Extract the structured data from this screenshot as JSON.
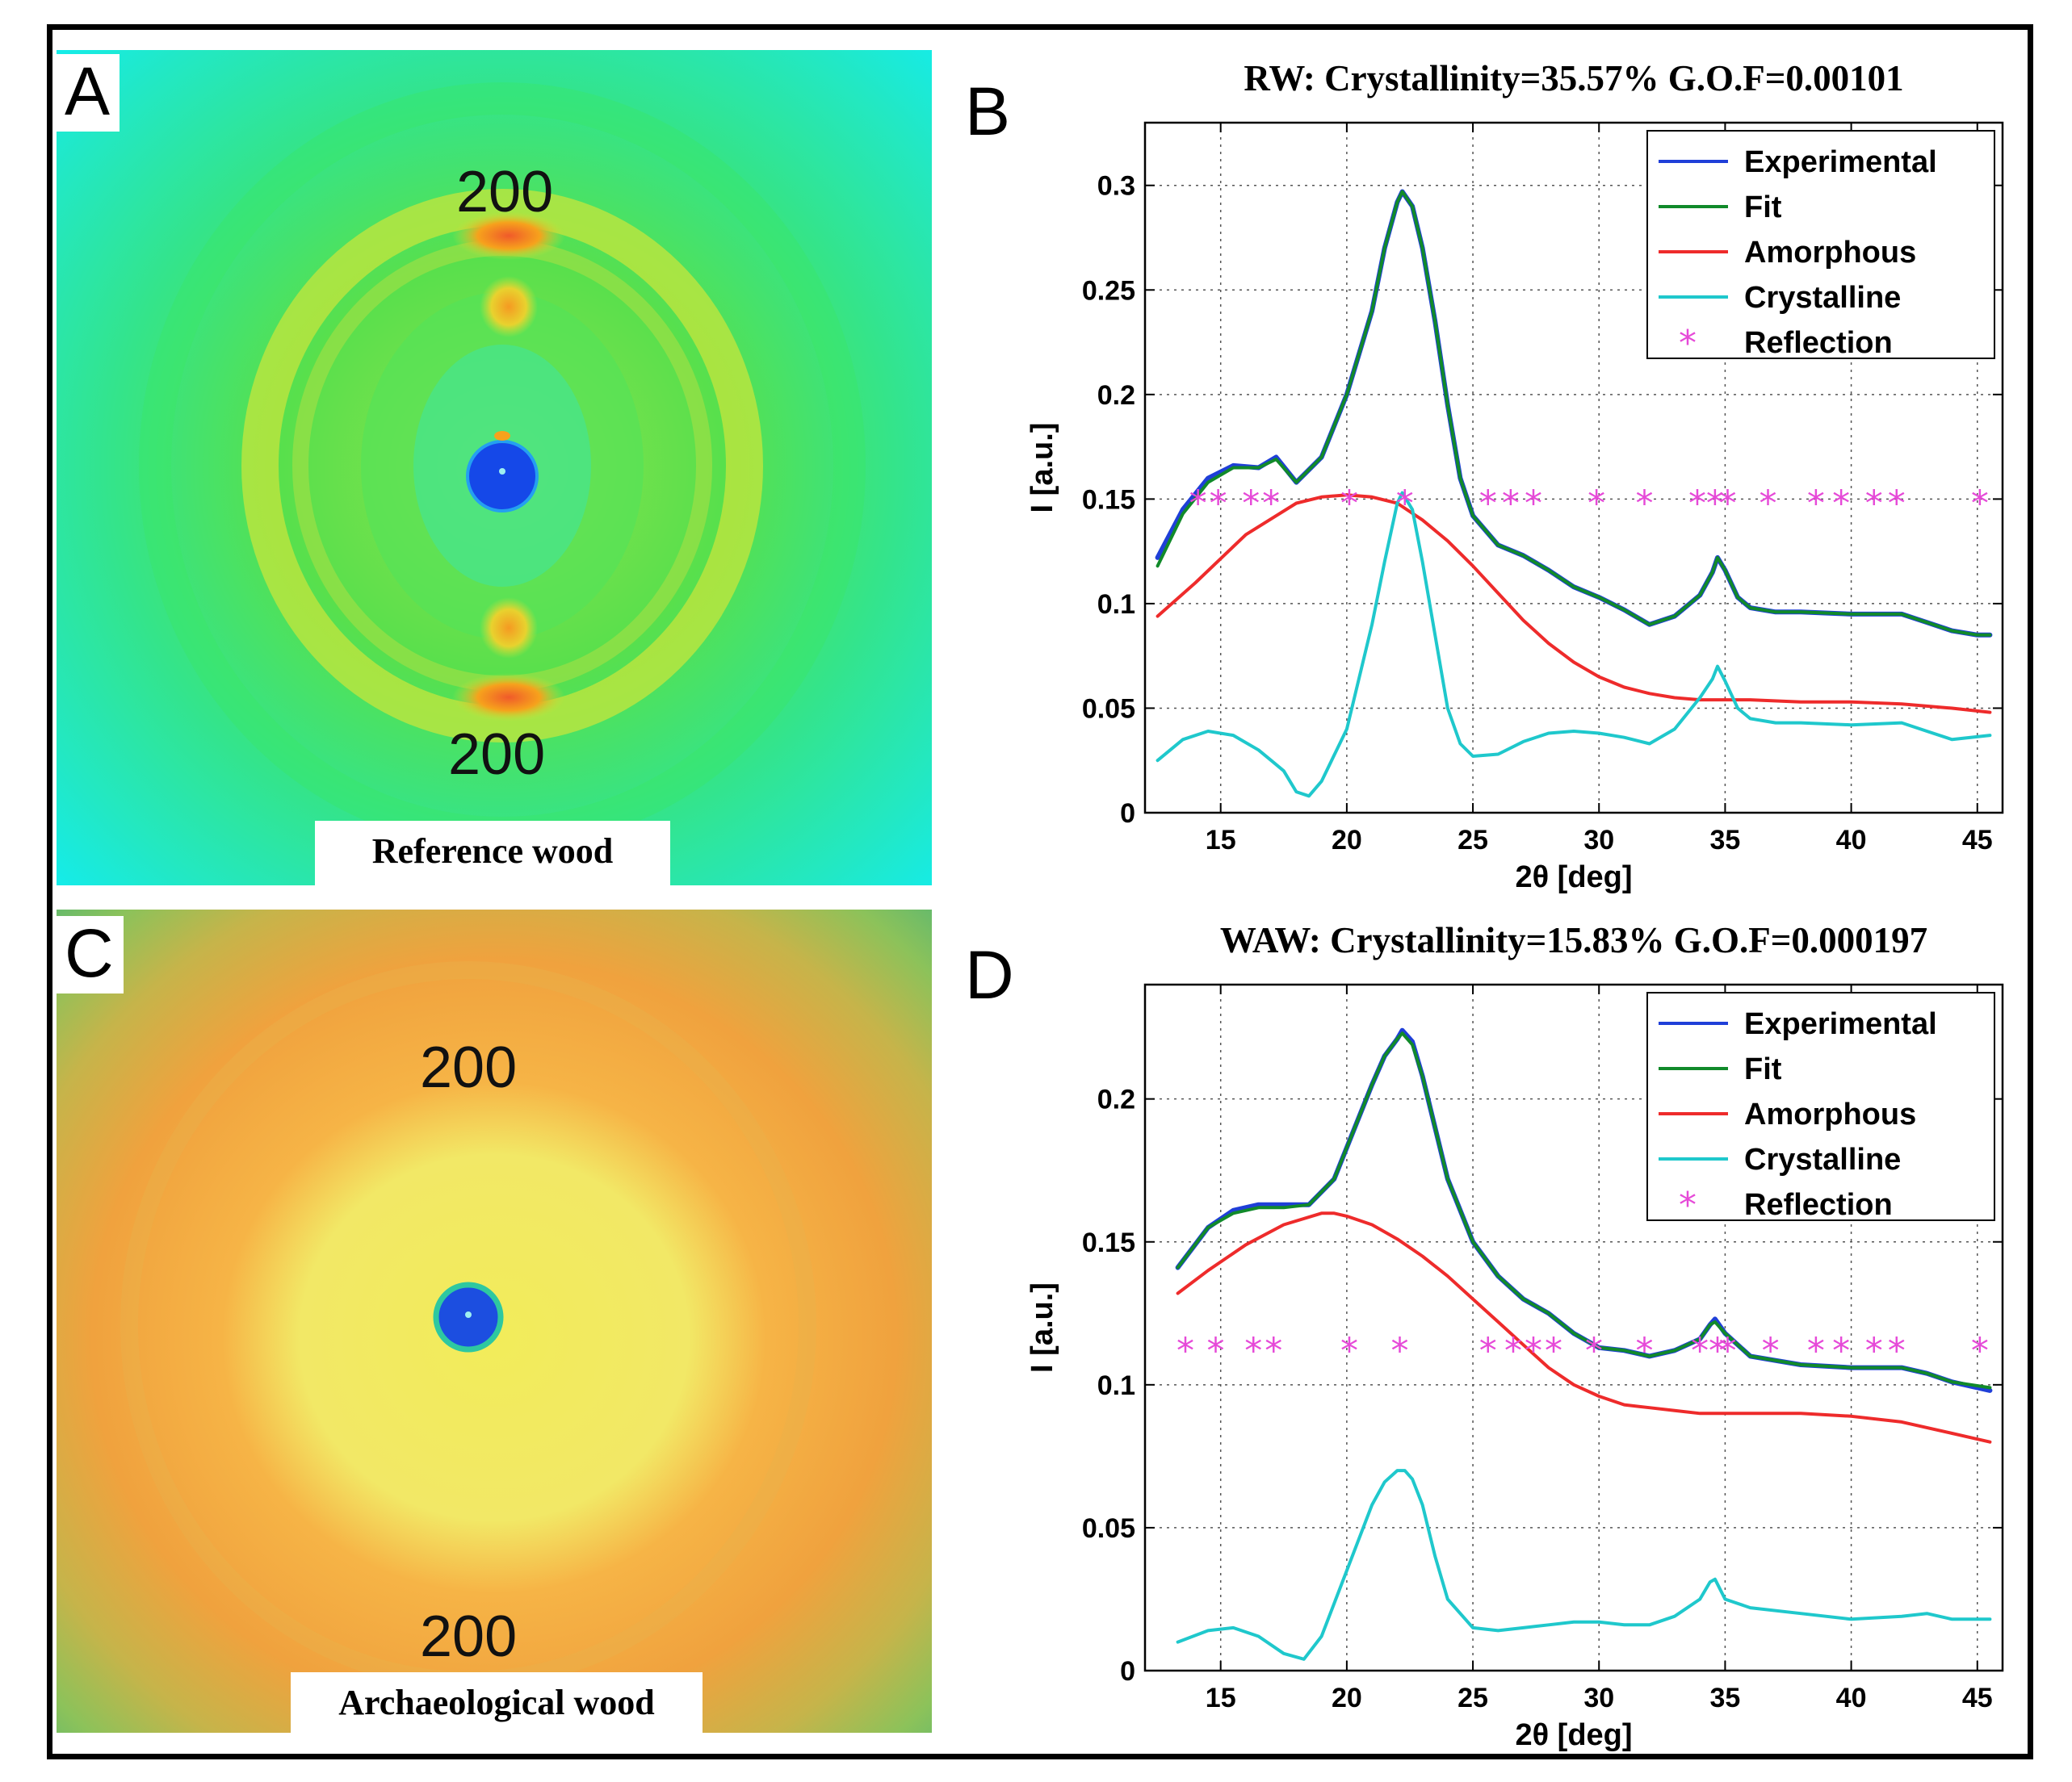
{
  "panels": {
    "A": {
      "letter": "A",
      "top_reflection": "200",
      "bottom_reflection": "200",
      "caption": "Reference wood"
    },
    "C": {
      "letter": "C",
      "top_reflection": "200",
      "bottom_reflection": "200",
      "caption": "Archaeological wood"
    }
  },
  "colors": {
    "experimental": "#1f3fd8",
    "fit": "#118a2a",
    "amorphous": "#ee2b2b",
    "crystalline": "#1fc8cc",
    "reflection": "#e64ad8",
    "frame": "#000000"
  },
  "chart_data": [
    {
      "panel_letter": "B",
      "type": "line",
      "title": "RW: Crystallinity=35.57% G.O.F=0.00101",
      "xlabel": "2θ [deg]",
      "ylabel": "I [a.u.]",
      "xlim": [
        12,
        46
      ],
      "ylim": [
        0,
        0.33
      ],
      "xticks": [
        15,
        20,
        25,
        30,
        35,
        40,
        45
      ],
      "yticks": [
        0,
        0.05,
        0.1,
        0.15,
        0.2,
        0.25,
        0.3
      ],
      "ytick_labels": [
        "0",
        "0.05",
        "0.1",
        "0.15",
        "0.2",
        "0.25",
        "0.3"
      ],
      "grid": true,
      "legend_position": "top-right",
      "legend": [
        "Experimental",
        "Fit",
        "Amorphous",
        "Crystalline",
        "Reflection"
      ],
      "series": [
        {
          "name": "Experimental",
          "color": "#1f3fd8",
          "x": [
            12.5,
            13.5,
            14.5,
            15.5,
            16.5,
            17.2,
            18,
            19,
            20,
            21,
            21.5,
            22,
            22.2,
            22.6,
            23,
            23.5,
            24,
            24.5,
            25,
            26,
            27,
            28,
            29,
            30,
            31,
            32,
            33,
            34,
            34.5,
            34.7,
            35,
            35.5,
            36,
            37,
            38,
            40,
            42,
            43,
            44,
            45,
            45.5
          ],
          "y": [
            0.122,
            0.145,
            0.16,
            0.166,
            0.165,
            0.17,
            0.158,
            0.17,
            0.2,
            0.24,
            0.27,
            0.292,
            0.297,
            0.29,
            0.27,
            0.235,
            0.195,
            0.16,
            0.142,
            0.128,
            0.123,
            0.116,
            0.108,
            0.103,
            0.097,
            0.09,
            0.094,
            0.104,
            0.115,
            0.122,
            0.116,
            0.103,
            0.098,
            0.096,
            0.096,
            0.095,
            0.095,
            0.091,
            0.087,
            0.085,
            0.085
          ]
        },
        {
          "name": "Fit",
          "color": "#118a2a",
          "x": [
            12.5,
            13.5,
            14.5,
            15.5,
            16.5,
            17.2,
            18,
            19,
            20,
            21,
            21.5,
            22,
            22.2,
            22.6,
            23,
            23.5,
            24,
            24.5,
            25,
            26,
            27,
            28,
            29,
            30,
            31,
            32,
            33,
            34,
            34.5,
            34.7,
            35,
            35.5,
            36,
            37,
            38,
            40,
            42,
            43,
            44,
            45,
            45.5
          ],
          "y": [
            0.118,
            0.143,
            0.158,
            0.165,
            0.165,
            0.169,
            0.158,
            0.17,
            0.2,
            0.24,
            0.27,
            0.292,
            0.297,
            0.29,
            0.27,
            0.235,
            0.195,
            0.16,
            0.142,
            0.128,
            0.123,
            0.116,
            0.108,
            0.103,
            0.097,
            0.09,
            0.094,
            0.104,
            0.115,
            0.122,
            0.116,
            0.103,
            0.098,
            0.096,
            0.096,
            0.095,
            0.095,
            0.091,
            0.087,
            0.085,
            0.085
          ]
        },
        {
          "name": "Amorphous",
          "color": "#ee2b2b",
          "x": [
            12.5,
            14,
            16,
            18,
            19,
            20,
            21,
            22,
            23,
            24,
            25,
            26,
            27,
            28,
            29,
            30,
            31,
            32,
            33,
            34,
            35,
            36,
            38,
            40,
            42,
            44,
            45.5
          ],
          "y": [
            0.094,
            0.11,
            0.133,
            0.148,
            0.151,
            0.152,
            0.151,
            0.148,
            0.14,
            0.13,
            0.118,
            0.105,
            0.092,
            0.081,
            0.072,
            0.065,
            0.06,
            0.057,
            0.055,
            0.054,
            0.054,
            0.054,
            0.053,
            0.053,
            0.052,
            0.05,
            0.048
          ]
        },
        {
          "name": "Crystalline",
          "color": "#1fc8cc",
          "x": [
            12.5,
            13.5,
            14.5,
            15.5,
            16.5,
            17,
            17.5,
            18,
            18.5,
            19,
            20,
            21,
            21.5,
            22,
            22.2,
            22.6,
            23,
            23.5,
            24,
            24.5,
            25,
            26,
            27,
            28,
            29,
            30,
            31,
            32,
            33,
            34,
            34.5,
            34.7,
            35,
            35.5,
            36,
            37,
            38,
            40,
            42,
            43,
            44,
            45.5
          ],
          "y": [
            0.025,
            0.035,
            0.039,
            0.037,
            0.03,
            0.025,
            0.02,
            0.01,
            0.008,
            0.015,
            0.04,
            0.09,
            0.12,
            0.148,
            0.153,
            0.145,
            0.12,
            0.085,
            0.05,
            0.033,
            0.027,
            0.028,
            0.034,
            0.038,
            0.039,
            0.038,
            0.036,
            0.033,
            0.04,
            0.055,
            0.064,
            0.07,
            0.063,
            0.05,
            0.045,
            0.043,
            0.043,
            0.042,
            0.043,
            0.039,
            0.035,
            0.037
          ]
        },
        {
          "name": "Reflection",
          "color": "#e64ad8",
          "marker": "*",
          "x": [
            14.1,
            14.9,
            16.2,
            17.0,
            20.1,
            22.3,
            25.6,
            26.5,
            27.4,
            29.9,
            31.8,
            33.9,
            34.6,
            35.1,
            36.7,
            38.6,
            39.6,
            40.9,
            41.8,
            45.1
          ],
          "y": [
            0.148,
            0.148,
            0.148,
            0.148,
            0.148,
            0.148,
            0.148,
            0.148,
            0.148,
            0.148,
            0.148,
            0.148,
            0.148,
            0.148,
            0.148,
            0.148,
            0.148,
            0.148,
            0.148,
            0.148
          ]
        }
      ]
    },
    {
      "panel_letter": "D",
      "type": "line",
      "title": "WAW: Crystallinity=15.83% G.O.F=0.000197",
      "xlabel": "2θ [deg]",
      "ylabel": "I [a.u.]",
      "xlim": [
        12,
        46
      ],
      "ylim": [
        0,
        0.24
      ],
      "xticks": [
        15,
        20,
        25,
        30,
        35,
        40,
        45
      ],
      "yticks": [
        0,
        0.05,
        0.1,
        0.15,
        0.2
      ],
      "ytick_labels": [
        "0",
        "0.05",
        "0.1",
        "0.15",
        "0.2"
      ],
      "grid": true,
      "legend_position": "top-right",
      "legend": [
        "Experimental",
        "Fit",
        "Amorphous",
        "Crystalline",
        "Reflection"
      ],
      "series": [
        {
          "name": "Experimental",
          "color": "#1f3fd8",
          "x": [
            13.3,
            14.5,
            15.5,
            16.5,
            17.5,
            18.5,
            19.5,
            20.5,
            21,
            21.5,
            22,
            22.2,
            22.6,
            23,
            23.5,
            24,
            25,
            26,
            27,
            28,
            29,
            30,
            31,
            32,
            33,
            34,
            34.4,
            34.6,
            35,
            36,
            38,
            40,
            42,
            43,
            44,
            45.5
          ],
          "y": [
            0.141,
            0.155,
            0.161,
            0.163,
            0.163,
            0.163,
            0.172,
            0.194,
            0.205,
            0.215,
            0.221,
            0.224,
            0.22,
            0.208,
            0.19,
            0.172,
            0.15,
            0.138,
            0.13,
            0.125,
            0.118,
            0.113,
            0.112,
            0.11,
            0.112,
            0.116,
            0.121,
            0.123,
            0.118,
            0.11,
            0.107,
            0.106,
            0.106,
            0.104,
            0.101,
            0.098
          ]
        },
        {
          "name": "Fit",
          "color": "#118a2a",
          "x": [
            13.3,
            14.5,
            15.5,
            16.5,
            17.5,
            18.5,
            19.5,
            20.5,
            21,
            21.5,
            22,
            22.2,
            22.6,
            23,
            23.5,
            24,
            25,
            26,
            27,
            28,
            29,
            30,
            31,
            32,
            33,
            34,
            34.4,
            34.6,
            35,
            36,
            38,
            40,
            42,
            43,
            44,
            45.5
          ],
          "y": [
            0.141,
            0.155,
            0.16,
            0.162,
            0.162,
            0.163,
            0.172,
            0.194,
            0.205,
            0.215,
            0.221,
            0.223,
            0.219,
            0.208,
            0.19,
            0.172,
            0.15,
            0.138,
            0.13,
            0.125,
            0.118,
            0.113,
            0.112,
            0.11,
            0.112,
            0.116,
            0.121,
            0.122,
            0.118,
            0.11,
            0.107,
            0.106,
            0.106,
            0.104,
            0.101,
            0.099
          ]
        },
        {
          "name": "Amorphous",
          "color": "#ee2b2b",
          "x": [
            13.3,
            14.5,
            16,
            17.5,
            19,
            19.5,
            20,
            21,
            22,
            23,
            24,
            25,
            26,
            27,
            28,
            29,
            30,
            31,
            32,
            33,
            34,
            35,
            36,
            38,
            40,
            42,
            44,
            45.5
          ],
          "y": [
            0.132,
            0.14,
            0.149,
            0.156,
            0.16,
            0.16,
            0.159,
            0.156,
            0.151,
            0.145,
            0.138,
            0.13,
            0.122,
            0.114,
            0.106,
            0.1,
            0.096,
            0.093,
            0.092,
            0.091,
            0.09,
            0.09,
            0.09,
            0.09,
            0.089,
            0.087,
            0.083,
            0.08
          ]
        },
        {
          "name": "Crystalline",
          "color": "#1fc8cc",
          "x": [
            13.3,
            14.5,
            15.5,
            16.5,
            17.5,
            18.3,
            19,
            20,
            21,
            21.5,
            22,
            22.3,
            22.6,
            23,
            23.5,
            24,
            25,
            26,
            27,
            28,
            29,
            30,
            31,
            32,
            33,
            34,
            34.4,
            34.6,
            35,
            36,
            38,
            40,
            42,
            43,
            44,
            45.5
          ],
          "y": [
            0.01,
            0.014,
            0.015,
            0.012,
            0.006,
            0.004,
            0.012,
            0.035,
            0.058,
            0.066,
            0.07,
            0.07,
            0.067,
            0.058,
            0.04,
            0.025,
            0.015,
            0.014,
            0.015,
            0.016,
            0.017,
            0.017,
            0.016,
            0.016,
            0.019,
            0.025,
            0.031,
            0.032,
            0.025,
            0.022,
            0.02,
            0.018,
            0.019,
            0.02,
            0.018,
            0.018
          ]
        },
        {
          "name": "Reflection",
          "color": "#e64ad8",
          "marker": "*",
          "x": [
            13.6,
            14.8,
            16.3,
            17.1,
            20.1,
            22.1,
            25.6,
            26.6,
            27.4,
            28.2,
            29.8,
            31.8,
            34.0,
            34.7,
            35.1,
            36.8,
            38.6,
            39.6,
            40.9,
            41.8,
            45.1
          ],
          "y": [
            0.112,
            0.112,
            0.112,
            0.112,
            0.112,
            0.112,
            0.112,
            0.112,
            0.112,
            0.112,
            0.112,
            0.112,
            0.112,
            0.112,
            0.112,
            0.112,
            0.112,
            0.112,
            0.112,
            0.112,
            0.112
          ]
        }
      ]
    }
  ]
}
